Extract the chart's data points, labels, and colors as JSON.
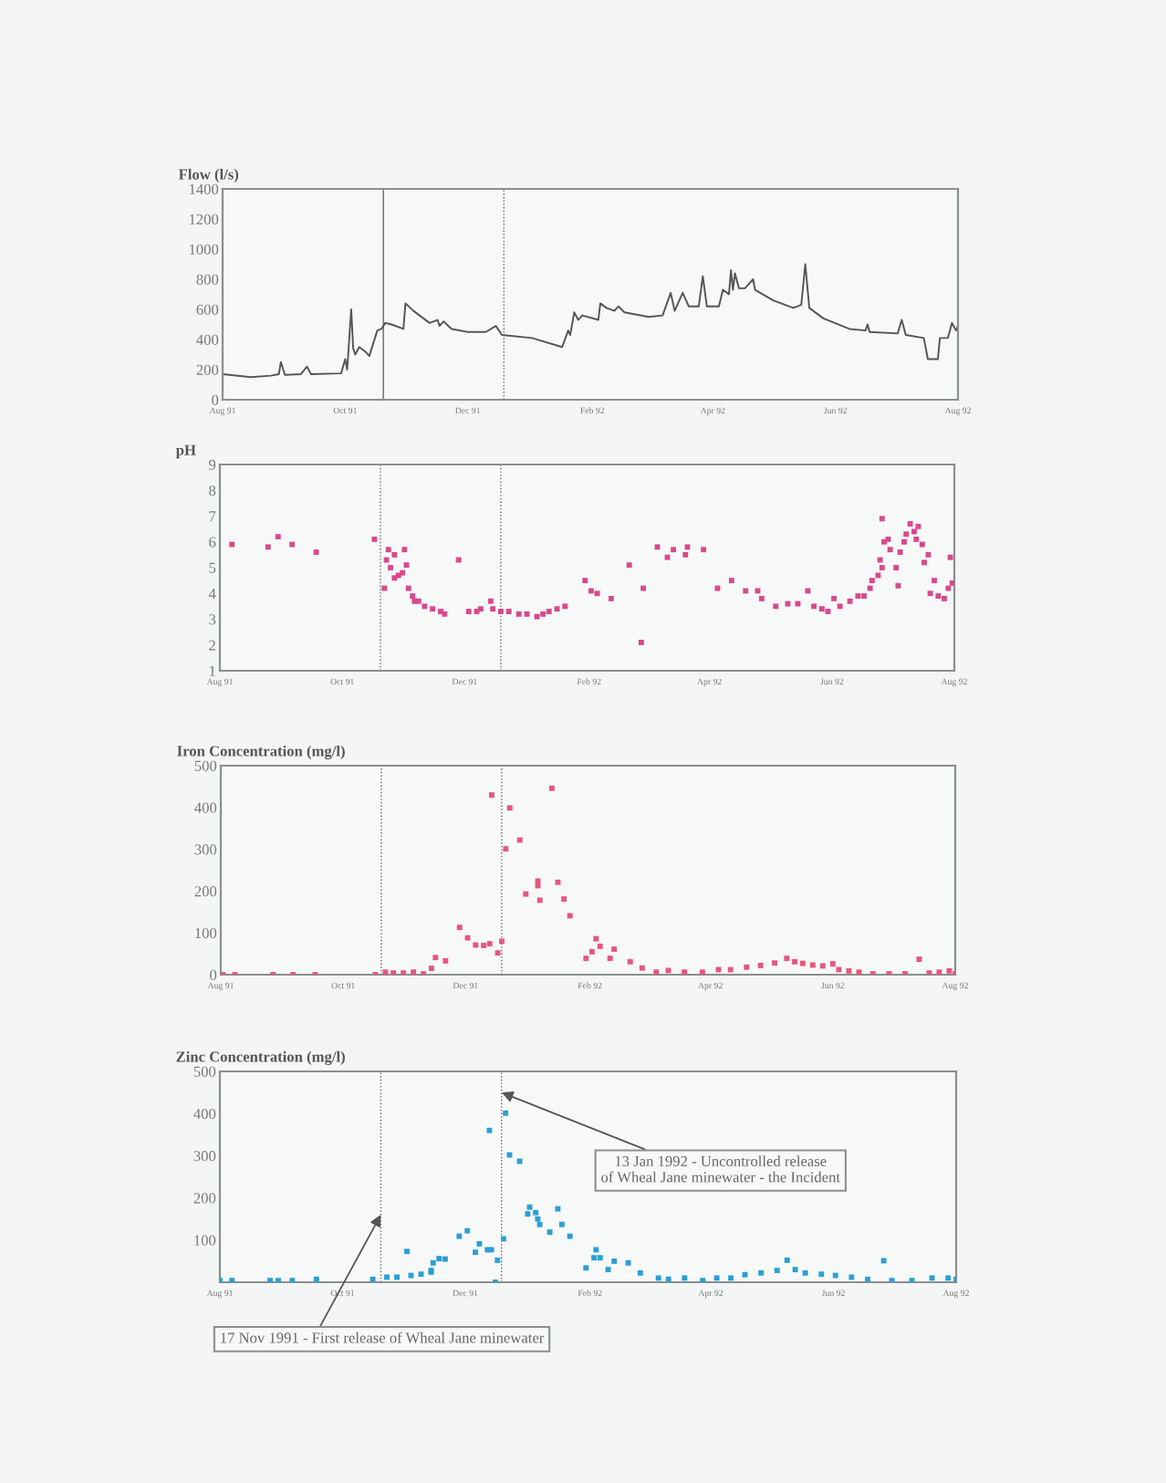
{
  "chart_data": [
    {
      "type": "line",
      "ylabel": "Flow (l/s)",
      "color": "#555555",
      "marker": "none",
      "line_style": "solid",
      "x": [
        "1991-08-01",
        "1991-08-15",
        "1991-08-25",
        "1991-08-29",
        "1991-08-30",
        "1991-09-01",
        "1991-09-09",
        "1991-09-12",
        "1991-09-14",
        "1991-09-29",
        "1991-10-01",
        "1991-10-02",
        "1991-10-04",
        "1991-10-05",
        "1991-10-06",
        "1991-10-08",
        "1991-10-11",
        "1991-10-13",
        "1991-10-17",
        "1991-10-19",
        "1991-10-21",
        "1991-10-24",
        "1991-10-30",
        "1991-10-31",
        "1991-11-04",
        "1991-11-12",
        "1991-11-16",
        "1991-11-17",
        "1991-11-19",
        "1991-11-23",
        "1991-12-01",
        "1991-12-10",
        "1991-12-15",
        "1991-12-18",
        "1992-01-02",
        "1992-01-17",
        "1992-01-20",
        "1992-01-21",
        "1992-01-23",
        "1992-01-25",
        "1992-01-27",
        "1992-02-04",
        "1992-02-05",
        "1992-02-08",
        "1992-02-12",
        "1992-02-14",
        "1992-02-17",
        "1992-02-29",
        "1992-03-07",
        "1992-03-11",
        "1992-03-13",
        "1992-03-17",
        "1992-03-20",
        "1992-03-25",
        "1992-03-27",
        "1992-03-29",
        "1992-04-04",
        "1992-04-06",
        "1992-04-09",
        "1992-04-10",
        "1992-04-11",
        "1992-04-12",
        "1992-04-14",
        "1992-04-17",
        "1992-04-21",
        "1992-04-22",
        "1992-05-01",
        "1992-05-11",
        "1992-05-15",
        "1992-05-17",
        "1992-05-19",
        "1992-05-26",
        "1992-06-08",
        "1992-06-16",
        "1992-06-17",
        "1992-06-18",
        "1992-07-02",
        "1992-07-04",
        "1992-07-06",
        "1992-07-15",
        "1992-07-17",
        "1992-07-22",
        "1992-07-23",
        "1992-07-27",
        "1992-07-29",
        "1992-07-31",
        "1992-08-01"
      ],
      "values": [
        170,
        150,
        160,
        170,
        250,
        165,
        170,
        220,
        170,
        175,
        270,
        200,
        600,
        340,
        300,
        350,
        320,
        290,
        460,
        470,
        510,
        500,
        470,
        640,
        590,
        510,
        530,
        490,
        520,
        470,
        450,
        450,
        490,
        430,
        410,
        350,
        460,
        430,
        580,
        530,
        560,
        530,
        640,
        610,
        590,
        620,
        580,
        550,
        560,
        710,
        590,
        710,
        620,
        620,
        820,
        620,
        620,
        730,
        700,
        860,
        730,
        840,
        740,
        740,
        800,
        730,
        660,
        610,
        630,
        900,
        610,
        540,
        470,
        460,
        500,
        450,
        440,
        530,
        430,
        410,
        270,
        270,
        410,
        410,
        510,
        460,
        490
      ],
      "xlim": [
        "1991-08-01",
        "1992-08-01"
      ],
      "xticks": [
        {
          "value": "1991-08-01",
          "label": "Aug 91"
        },
        {
          "value": "1991-10-01",
          "label": "Oct 91"
        },
        {
          "value": "1991-12-01",
          "label": "Dec 91"
        },
        {
          "value": "1992-02-01",
          "label": "Feb 92"
        },
        {
          "value": "1992-04-01",
          "label": "Apr 92"
        },
        {
          "value": "1992-06-01",
          "label": "Jun 92"
        },
        {
          "value": "1992-08-01",
          "label": "Aug 92"
        }
      ],
      "ylim": [
        0,
        1400
      ],
      "yticks": [
        0,
        200,
        400,
        600,
        800,
        1000,
        1200,
        1400
      ],
      "grid": false,
      "legend": false,
      "ref_lines": [
        {
          "axis": "x",
          "value": "1991-10-20",
          "color": "#666666",
          "line_style": "solid"
        },
        {
          "axis": "x",
          "value": "1991-12-19",
          "color": "#666666",
          "line_style": "dotted"
        }
      ]
    },
    {
      "type": "scatter",
      "ylabel": "pH",
      "color": "#d9488c",
      "marker": "square",
      "x": [
        "1991-08-07",
        "1991-08-25",
        "1991-08-30",
        "1991-09-06",
        "1991-09-18",
        "1991-10-17",
        "1991-10-22",
        "1991-10-23",
        "1991-10-24",
        "1991-10-25",
        "1991-10-27",
        "1991-10-27",
        "1991-10-29",
        "1991-10-31",
        "1991-11-01",
        "1991-11-02",
        "1991-11-03",
        "1991-11-05",
        "1991-11-06",
        "1991-11-08",
        "1991-11-11",
        "1991-11-15",
        "1991-11-19",
        "1991-11-21",
        "1991-11-28",
        "1991-12-03",
        "1991-12-07",
        "1991-12-09",
        "1991-12-14",
        "1991-12-15",
        "1991-12-19",
        "1991-12-23",
        "1991-12-28",
        "1992-01-01",
        "1992-01-06",
        "1992-01-09",
        "1992-01-12",
        "1992-01-16",
        "1992-01-20",
        "1992-01-30",
        "1992-02-02",
        "1992-02-05",
        "1992-02-12",
        "1992-02-21",
        "1992-02-28",
        "1992-02-27",
        "1992-03-06",
        "1992-03-11",
        "1992-03-14",
        "1992-03-20",
        "1992-03-21",
        "1992-03-29",
        "1992-04-05",
        "1992-04-12",
        "1992-04-19",
        "1992-04-25",
        "1992-04-27",
        "1992-05-04",
        "1992-05-10",
        "1992-05-15",
        "1992-05-20",
        "1992-05-23",
        "1992-05-27",
        "1992-05-30",
        "1992-06-02",
        "1992-06-05",
        "1992-06-10",
        "1992-06-14",
        "1992-06-17",
        "1992-06-20",
        "1992-06-21",
        "1992-06-24",
        "1992-06-25",
        "1992-06-26",
        "1992-06-27",
        "1992-06-29",
        "1992-06-26",
        "1992-06-30",
        "1992-07-03",
        "1992-07-04",
        "1992-07-05",
        "1992-07-07",
        "1992-07-08",
        "1992-07-10",
        "1992-07-12",
        "1992-07-13",
        "1992-07-14",
        "1992-07-16",
        "1992-07-17",
        "1992-07-19",
        "1992-07-20",
        "1992-07-22",
        "1992-07-24",
        "1992-07-27",
        "1992-07-29",
        "1992-07-30",
        "1992-07-31"
      ],
      "values": [
        5.9,
        5.8,
        6.2,
        5.9,
        5.6,
        6.1,
        4.2,
        5.3,
        5.7,
        5.0,
        5.5,
        4.6,
        4.7,
        4.8,
        5.7,
        5.1,
        4.2,
        3.9,
        3.7,
        3.7,
        3.5,
        3.4,
        3.3,
        3.2,
        5.3,
        3.3,
        3.3,
        3.4,
        3.7,
        3.4,
        3.3,
        3.3,
        3.2,
        3.2,
        3.1,
        3.2,
        3.3,
        3.4,
        3.5,
        4.5,
        4.1,
        4.0,
        3.8,
        5.1,
        4.2,
        2.1,
        5.8,
        5.4,
        5.7,
        5.5,
        5.8,
        5.7,
        4.2,
        4.5,
        4.1,
        4.1,
        3.8,
        3.5,
        3.6,
        3.6,
        4.1,
        3.5,
        3.4,
        3.3,
        3.8,
        3.5,
        3.7,
        3.9,
        3.9,
        4.2,
        4.5,
        4.7,
        5.3,
        6.9,
        6.0,
        6.1,
        5.0,
        5.7,
        5.0,
        4.3,
        5.6,
        6.0,
        6.3,
        6.7,
        6.4,
        6.1,
        6.6,
        5.9,
        5.2,
        5.5,
        4.0,
        4.5,
        3.9,
        3.8,
        4.2,
        5.4,
        4.4
      ],
      "xlim": [
        "1991-08-01",
        "1992-08-01"
      ],
      "xticks": [
        {
          "value": "1991-08-01",
          "label": "Aug 91"
        },
        {
          "value": "1991-10-01",
          "label": "Oct 91"
        },
        {
          "value": "1991-12-01",
          "label": "Dec 91"
        },
        {
          "value": "1992-02-01",
          "label": "Feb 92"
        },
        {
          "value": "1992-04-01",
          "label": "Apr 92"
        },
        {
          "value": "1992-06-01",
          "label": "Jun 92"
        },
        {
          "value": "1992-08-01",
          "label": "Aug 92"
        }
      ],
      "ylim": [
        1,
        9
      ],
      "yticks": [
        1,
        2,
        3,
        4,
        5,
        6,
        7,
        8,
        9
      ],
      "grid": false,
      "legend": false,
      "ref_lines": [
        {
          "axis": "x",
          "value": "1991-10-20",
          "color": "#666666",
          "line_style": "dotted"
        },
        {
          "axis": "x",
          "value": "1991-12-19",
          "color": "#666666",
          "line_style": "dotted"
        }
      ]
    },
    {
      "type": "scatter",
      "ylabel": "Iron Concentration (mg/l)",
      "color": "#e8557f",
      "marker": "square",
      "x": [
        "1991-08-02",
        "1991-08-08",
        "1991-08-27",
        "1991-09-06",
        "1991-09-17",
        "1991-10-17",
        "1991-10-22",
        "1991-10-26",
        "1991-10-31",
        "1991-11-05",
        "1991-11-10",
        "1991-11-14",
        "1991-11-16",
        "1991-11-21",
        "1991-11-28",
        "1991-12-02",
        "1991-12-06",
        "1991-12-10",
        "1991-12-13",
        "1991-12-14",
        "1991-12-17",
        "1991-12-19",
        "1991-12-21",
        "1991-12-23",
        "1991-12-28",
        "1991-12-31",
        "1992-01-06",
        "1992-01-06",
        "1992-01-07",
        "1992-01-13",
        "1992-01-16",
        "1992-01-19",
        "1992-01-22",
        "1992-01-30",
        "1992-02-02",
        "1992-02-04",
        "1992-02-06",
        "1992-02-11",
        "1992-02-13",
        "1992-02-21",
        "1992-02-27",
        "1992-03-05",
        "1992-03-11",
        "1992-03-19",
        "1992-03-28",
        "1992-04-05",
        "1992-04-11",
        "1992-04-19",
        "1992-04-26",
        "1992-05-03",
        "1992-05-09",
        "1992-05-13",
        "1992-05-17",
        "1992-05-22",
        "1992-05-27",
        "1992-06-01",
        "1992-06-04",
        "1992-06-09",
        "1992-06-14",
        "1992-06-21",
        "1992-06-29",
        "1992-07-07",
        "1992-07-14",
        "1992-07-19",
        "1992-07-24",
        "1992-07-29",
        "1992-08-01"
      ],
      "values": [
        0,
        0,
        0,
        0,
        0,
        0,
        6,
        4,
        4,
        6,
        2,
        15,
        41,
        33,
        113,
        88,
        71,
        70,
        74,
        430,
        52,
        80,
        301,
        399,
        322,
        193,
        224,
        213,
        178,
        446,
        221,
        181,
        141,
        39,
        55,
        86,
        68,
        39,
        61,
        31,
        16,
        6,
        10,
        6,
        6,
        12,
        12,
        18,
        22,
        28,
        39,
        31,
        27,
        23,
        21,
        26,
        12,
        9,
        6,
        2,
        2,
        2,
        37,
        4,
        6,
        9,
        2
      ],
      "xlim": [
        "1991-08-01",
        "1992-08-01"
      ],
      "xticks": [
        {
          "value": "1991-08-01",
          "label": "Aug 91"
        },
        {
          "value": "1991-10-01",
          "label": "Oct 91"
        },
        {
          "value": "1991-12-01",
          "label": "Dec 91"
        },
        {
          "value": "1992-02-01",
          "label": "Feb 92"
        },
        {
          "value": "1992-04-01",
          "label": "Apr 92"
        },
        {
          "value": "1992-06-01",
          "label": "Jun 92"
        },
        {
          "value": "1992-08-01",
          "label": "Aug 92"
        }
      ],
      "ylim": [
        0,
        500
      ],
      "yticks": [
        0,
        100,
        200,
        300,
        400,
        500
      ],
      "grid": false,
      "legend": false,
      "ref_lines": [
        {
          "axis": "x",
          "value": "1991-10-20",
          "color": "#666666",
          "line_style": "dotted"
        },
        {
          "axis": "x",
          "value": "1991-12-19",
          "color": "#666666",
          "line_style": "dotted"
        }
      ]
    },
    {
      "type": "scatter",
      "ylabel": "Zinc Concentration (mg/l)",
      "color": "#2a9fd6",
      "marker": "square",
      "x": [
        "1991-08-01",
        "1991-08-07",
        "1991-08-26",
        "1991-08-30",
        "1991-09-06",
        "1991-09-18",
        "1991-10-16",
        "1991-10-23",
        "1991-10-28",
        "1991-11-02",
        "1991-11-04",
        "1991-11-09",
        "1991-11-14",
        "1991-11-15",
        "1991-11-14",
        "1991-11-18",
        "1991-11-21",
        "1991-11-28",
        "1991-12-02",
        "1991-12-06",
        "1991-12-08",
        "1991-12-13",
        "1991-12-12",
        "1991-12-14",
        "1991-12-16",
        "1991-12-17",
        "1991-12-20",
        "1991-12-21",
        "1991-12-23",
        "1991-12-28",
        "1992-01-01",
        "1992-01-02",
        "1992-01-05",
        "1992-01-06",
        "1992-01-07",
        "1992-01-12",
        "1992-01-16",
        "1992-01-18",
        "1992-01-22",
        "1992-01-30",
        "1992-02-03",
        "1992-02-04",
        "1992-02-06",
        "1992-02-10",
        "1992-02-13",
        "1992-02-20",
        "1992-02-26",
        "1992-03-06",
        "1992-03-11",
        "1992-03-19",
        "1992-03-28",
        "1992-04-04",
        "1992-04-11",
        "1992-04-18",
        "1992-04-26",
        "1992-05-04",
        "1992-05-09",
        "1992-05-13",
        "1992-05-18",
        "1992-05-26",
        "1992-06-02",
        "1992-06-10",
        "1992-06-18",
        "1992-06-26",
        "1992-06-30",
        "1992-07-10",
        "1992-07-20",
        "1992-07-28",
        "1992-08-01"
      ],
      "values": [
        4,
        4,
        4,
        4,
        4,
        7,
        7,
        12,
        12,
        73,
        16,
        19,
        24,
        46,
        28,
        56,
        55,
        109,
        122,
        71,
        91,
        360,
        77,
        77,
        0,
        52,
        103,
        401,
        302,
        287,
        162,
        178,
        165,
        150,
        137,
        119,
        174,
        137,
        109,
        34,
        58,
        77,
        58,
        30,
        50,
        46,
        22,
        10,
        7,
        10,
        4,
        10,
        10,
        18,
        22,
        28,
        52,
        30,
        22,
        19,
        16,
        12,
        7,
        51,
        4,
        4,
        10,
        10,
        7
      ],
      "xlim": [
        "1991-08-01",
        "1992-08-01"
      ],
      "xticks": [
        {
          "value": "1991-08-01",
          "label": "Aug 91"
        },
        {
          "value": "1991-10-01",
          "label": "Oct 91"
        },
        {
          "value": "1991-12-01",
          "label": "Dec 91"
        },
        {
          "value": "1992-02-01",
          "label": "Feb 92"
        },
        {
          "value": "1992-04-01",
          "label": "Apr 92"
        },
        {
          "value": "1992-06-01",
          "label": "Jun 92"
        },
        {
          "value": "1992-08-01",
          "label": "Aug 92"
        }
      ],
      "ylim": [
        0,
        500
      ],
      "yticks": [
        100,
        200,
        300,
        400,
        500
      ],
      "grid": false,
      "legend": false,
      "ref_lines": [
        {
          "axis": "x",
          "value": "1991-10-20",
          "color": "#666666",
          "line_style": "dotted"
        },
        {
          "axis": "x",
          "value": "1991-12-19",
          "color": "#666666",
          "line_style": "dotted"
        }
      ],
      "annotations": [
        {
          "text": "13 Jan 1992 - Uncontrolled release\nof Wheal Jane minewater - the Incident",
          "x": "1991-12-19",
          "y": 450
        },
        {
          "text": "17 Nov 1991 - First release of Wheal Jane minewater",
          "x": "1991-10-20",
          "y": 160
        }
      ]
    }
  ]
}
